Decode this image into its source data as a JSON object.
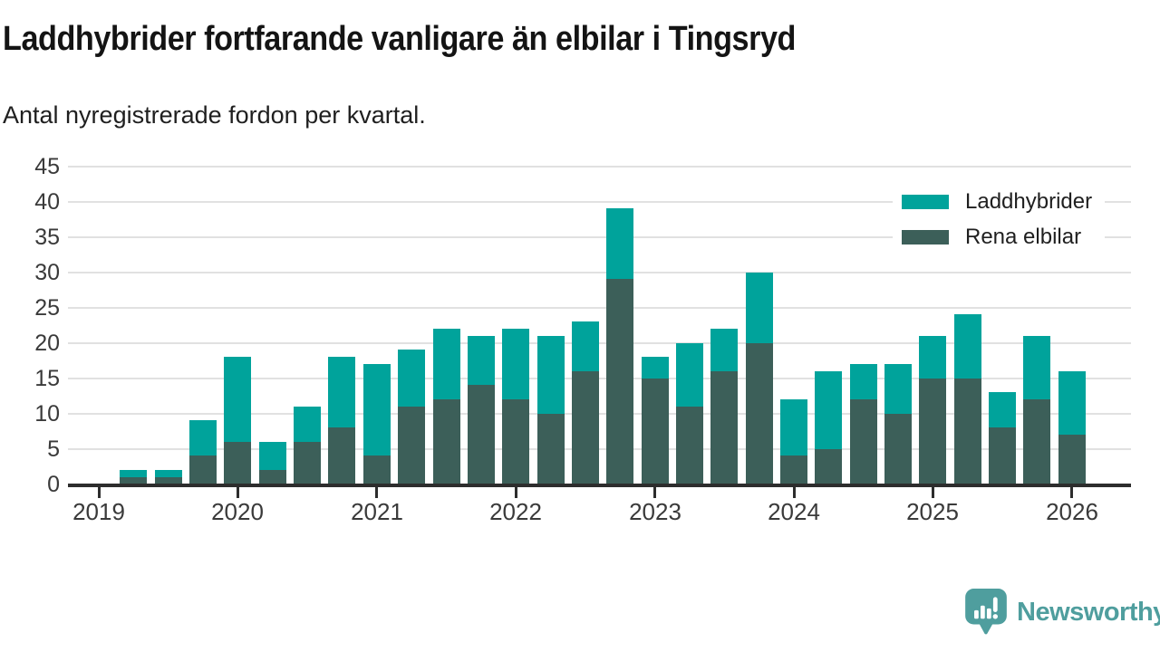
{
  "header": {
    "title": "Laddhybrider fortfarande vanligare än elbilar i Tingsryd",
    "subtitle": "Antal nyregistrerade fordon per kvartal."
  },
  "chart_data": {
    "type": "bar",
    "stacked": true,
    "title": "Laddhybrider fortfarande vanligare än elbilar i Tingsryd",
    "subtitle": "Antal nyregistrerade fordon per kvartal.",
    "categories": [
      "2019 Q1",
      "2019 Q2",
      "2019 Q3",
      "2019 Q4",
      "2020 Q1",
      "2020 Q2",
      "2020 Q3",
      "2020 Q4",
      "2021 Q1",
      "2021 Q2",
      "2021 Q3",
      "2021 Q4",
      "2022 Q1",
      "2022 Q2",
      "2022 Q3",
      "2022 Q4",
      "2023 Q1",
      "2023 Q2",
      "2023 Q3",
      "2023 Q4",
      "2024 Q1",
      "2024 Q2",
      "2024 Q3",
      "2024 Q4",
      "2025 Q1",
      "2025 Q2",
      "2025 Q3",
      "2025 Q4",
      "2026 Q1"
    ],
    "series": [
      {
        "name": "Laddhybrider",
        "color": "#00a39b",
        "stack_position": "top",
        "values": [
          0,
          1,
          1,
          5,
          12,
          4,
          5,
          10,
          13,
          8,
          10,
          7,
          10,
          11,
          7,
          10,
          3,
          9,
          6,
          10,
          8,
          11,
          5,
          7,
          6,
          9,
          5,
          9,
          9
        ]
      },
      {
        "name": "Rena elbilar",
        "color": "#3c5f59",
        "stack_position": "bottom",
        "values": [
          0,
          1,
          1,
          4,
          6,
          2,
          6,
          8,
          4,
          11,
          12,
          14,
          12,
          10,
          16,
          29,
          15,
          11,
          16,
          20,
          4,
          5,
          12,
          10,
          15,
          15,
          8,
          12,
          7
        ]
      }
    ],
    "totals": [
      0,
      2,
      2,
      9,
      18,
      6,
      11,
      18,
      17,
      19,
      22,
      21,
      22,
      21,
      23,
      39,
      18,
      20,
      22,
      30,
      12,
      16,
      17,
      17,
      21,
      24,
      13,
      21,
      16
    ],
    "xlabel": "",
    "ylabel": "",
    "ylim": [
      0,
      45
    ],
    "yticks": [
      0,
      5,
      10,
      15,
      20,
      25,
      30,
      35,
      40,
      45
    ],
    "xtick_labels": [
      "2019",
      "2020",
      "2021",
      "2022",
      "2023",
      "2024",
      "2025",
      "2026"
    ],
    "grid": true,
    "legend_position": "top-right"
  },
  "legend": {
    "items": [
      {
        "label": "Laddhybrider",
        "color": "#00a39b"
      },
      {
        "label": "Rena elbilar",
        "color": "#3c5f59"
      }
    ]
  },
  "branding": {
    "name": "Newsworthy",
    "color": "#4f9e9e"
  },
  "colors": {
    "accent_teal": "#00a39b",
    "dark_teal": "#3c5f59",
    "gridline": "#e1e1e1",
    "axis": "#2d2d2d",
    "text": "#1a1a1a"
  }
}
